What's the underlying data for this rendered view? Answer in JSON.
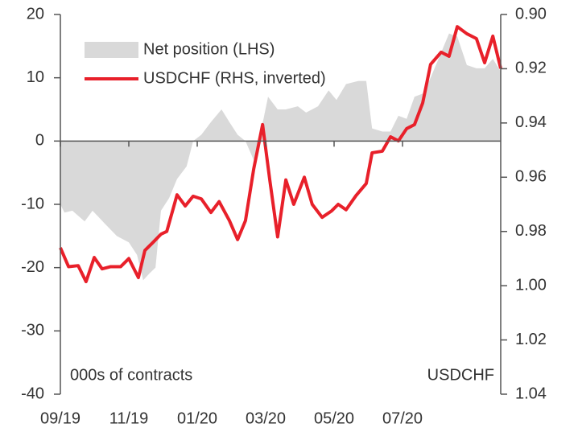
{
  "chart_data": {
    "type": "area-line",
    "legend": "top-left",
    "annotations": [
      "000s of contracts",
      "USDCHF"
    ],
    "xlim": [
      0,
      12.87
    ],
    "xticks": [
      {
        "value": 0,
        "label": "09/19"
      },
      {
        "value": 2,
        "label": "11/19"
      },
      {
        "value": 4,
        "label": "01/20"
      },
      {
        "value": 6,
        "label": "03/20"
      },
      {
        "value": 8,
        "label": "05/20"
      },
      {
        "value": 10,
        "label": "07/20"
      }
    ],
    "ylim": [
      -40,
      20
    ],
    "yticks": [
      20,
      10,
      0,
      -10,
      -20,
      -30,
      -40
    ],
    "y2lim": [
      0.9,
      1.04
    ],
    "y2_inverted": true,
    "y2ticks": [
      {
        "value": 0.9,
        "label": "0.90"
      },
      0.92,
      0.94,
      0.96,
      0.98,
      {
        "value": 1.0,
        "label": "1.00"
      },
      1.02,
      1.04
    ],
    "series": [
      {
        "name": "Net position (LHS)",
        "color": "#d9d9d9",
        "kind": "area",
        "x": [
          0,
          0.12,
          0.35,
          0.71,
          0.94,
          1.29,
          1.65,
          2,
          2.24,
          2.42,
          2.59,
          2.78,
          2.94,
          3.18,
          3.41,
          3.69,
          3.88,
          4.12,
          4.4,
          4.71,
          4.94,
          5.18,
          5.41,
          5.65,
          5.88,
          6.07,
          6.35,
          6.59,
          6.94,
          7.18,
          7.53,
          7.84,
          8.07,
          8.35,
          8.71,
          8.94,
          9.11,
          9.41,
          9.65,
          9.88,
          10.12,
          10.35,
          10.59,
          10.82,
          11.13,
          11.36,
          11.6,
          11.88,
          12.16,
          12.4,
          12.64,
          12.87
        ],
        "values": [
          -10,
          -11.3,
          -11,
          -12.7,
          -11,
          -13,
          -15,
          -16,
          -18,
          -22,
          -21,
          -20,
          -11,
          -9,
          -6,
          -4,
          0,
          1,
          3,
          5,
          3,
          1,
          0,
          -3,
          2,
          7,
          5,
          5,
          5.5,
          4.5,
          5.5,
          8,
          6.5,
          9,
          9.5,
          9.5,
          2,
          1.5,
          1.5,
          4,
          3.5,
          7,
          7.5,
          10,
          14,
          17,
          16.5,
          12,
          11.5,
          11.5,
          13,
          11
        ]
      },
      {
        "name": "USDCHF (RHS, inverted)",
        "color": "#e8202a",
        "kind": "line",
        "axis": "y2",
        "x": [
          0,
          0.24,
          0.52,
          0.75,
          0.99,
          1.22,
          1.46,
          1.76,
          2,
          2.28,
          2.47,
          2.71,
          2.94,
          3.11,
          3.41,
          3.65,
          3.88,
          4.12,
          4.4,
          4.64,
          4.94,
          5.18,
          5.41,
          5.65,
          5.91,
          6.12,
          6.35,
          6.59,
          6.82,
          7.13,
          7.36,
          7.65,
          7.93,
          8.12,
          8.35,
          8.64,
          8.94,
          9.11,
          9.41,
          9.65,
          9.88,
          10.12,
          10.35,
          10.59,
          10.82,
          11.13,
          11.36,
          11.6,
          11.88,
          12.16,
          12.4,
          12.64,
          12.87
        ],
        "values": [
          0.986,
          0.993,
          0.9926,
          0.9985,
          0.9896,
          0.9938,
          0.993,
          0.993,
          0.99,
          0.997,
          0.987,
          0.984,
          0.981,
          0.98,
          0.9665,
          0.9706,
          0.967,
          0.968,
          0.973,
          0.969,
          0.976,
          0.983,
          0.976,
          0.957,
          0.9406,
          0.961,
          0.982,
          0.961,
          0.97,
          0.96,
          0.97,
          0.9748,
          0.9724,
          0.97,
          0.972,
          0.9668,
          0.9623,
          0.951,
          0.9504,
          0.9451,
          0.9466,
          0.9421,
          0.9406,
          0.9326,
          0.9184,
          0.9139,
          0.9154,
          0.9045,
          0.9071,
          0.9089,
          0.9178,
          0.908,
          0.9199
        ]
      }
    ]
  }
}
